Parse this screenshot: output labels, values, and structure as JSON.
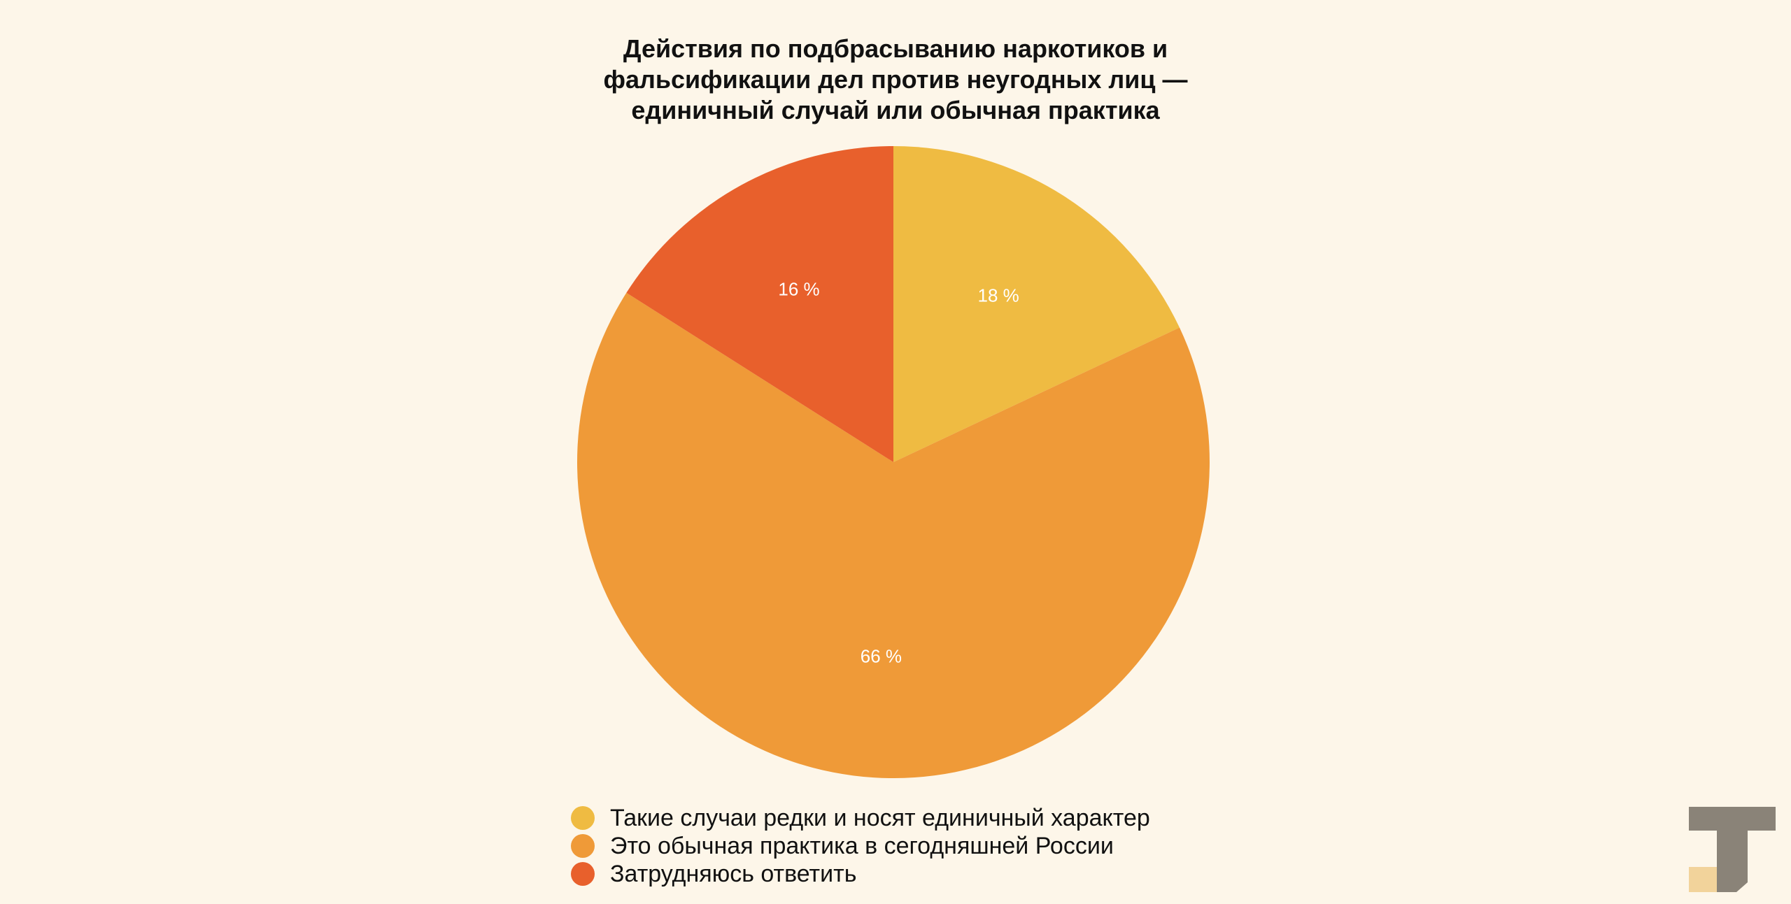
{
  "chart_data": {
    "type": "pie",
    "title": "Действия по подбрасыванию наркотиков и\nфальсификации дел против неугодных лиц —\nединичный случай или обычная практика",
    "categories": [
      "Такие случаи редки и носят единичный характер",
      "Это обычная практика в сегодняшней России",
      "Затрудняюсь ответить"
    ],
    "values": [
      18,
      66,
      16
    ],
    "data_labels": [
      "18 %",
      "66 %",
      "16 %"
    ],
    "colors": [
      "#efbb42",
      "#ef9a38",
      "#e8602c"
    ],
    "legend_position": "bottom",
    "start_angle": "top",
    "direction": "clockwise"
  },
  "colors": {
    "background": "#fdf6e9",
    "logo_dark": "#8a8378",
    "logo_light": "#f2d39b"
  },
  "icons": {
    "logo": "t-logo-icon"
  }
}
